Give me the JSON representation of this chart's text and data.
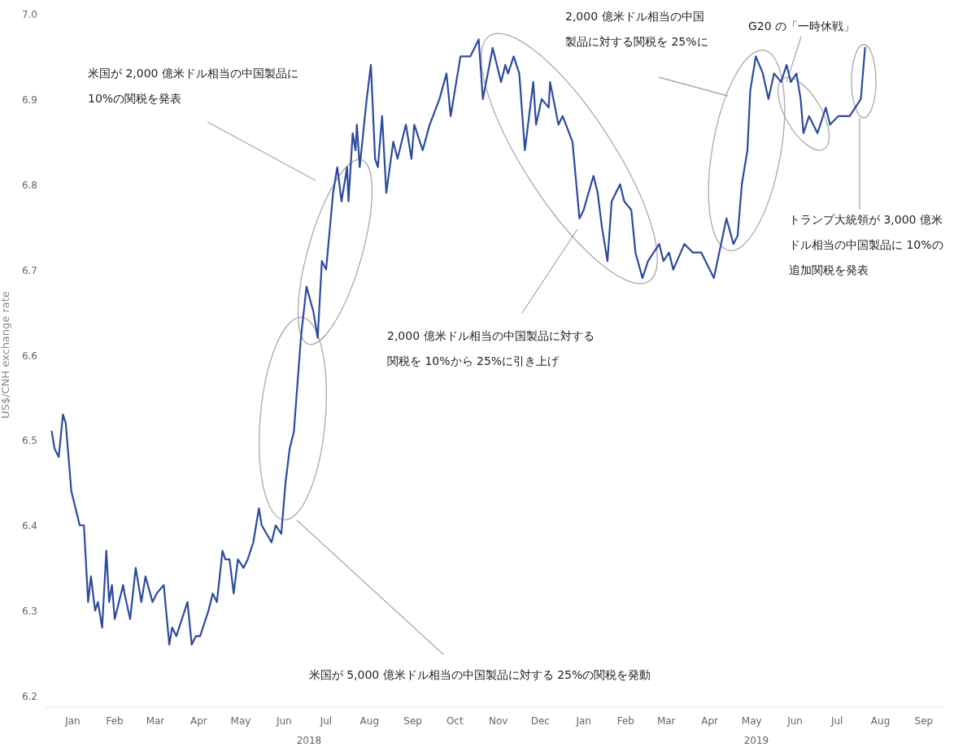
{
  "chart_data": {
    "type": "line",
    "ylabel": "US$/CNH exchange rate",
    "xlim": [
      "2017-12-27",
      "2019-09-30"
    ],
    "xticks": [
      {
        "value": "2018-01-16",
        "label": "Jan"
      },
      {
        "value": "2018-02-15",
        "label": "Feb"
      },
      {
        "value": "2018-03-16",
        "label": "Mar"
      },
      {
        "value": "2018-04-16",
        "label": "Apr"
      },
      {
        "value": "2018-05-16",
        "label": "May"
      },
      {
        "value": "2018-06-16",
        "label": "Jun"
      },
      {
        "value": "2018-07-16",
        "label": "Jul"
      },
      {
        "value": "2018-08-16",
        "label": "Aug"
      },
      {
        "value": "2018-09-16",
        "label": "Sep"
      },
      {
        "value": "2018-10-16",
        "label": "Oct"
      },
      {
        "value": "2018-11-16",
        "label": "Nov"
      },
      {
        "value": "2018-12-16",
        "label": "Dec"
      },
      {
        "value": "2019-01-16",
        "label": "Jan"
      },
      {
        "value": "2019-02-15",
        "label": "Feb"
      },
      {
        "value": "2019-03-16",
        "label": "Mar"
      },
      {
        "value": "2019-04-16",
        "label": "Apr"
      },
      {
        "value": "2019-05-16",
        "label": "May"
      },
      {
        "value": "2019-06-16",
        "label": "Jun"
      },
      {
        "value": "2019-07-16",
        "label": "Jul"
      },
      {
        "value": "2019-08-16",
        "label": "Aug"
      },
      {
        "value": "2019-09-16",
        "label": "Sep"
      }
    ],
    "ylim": [
      6.2,
      7.0
    ],
    "yticks": [
      6.2,
      6.3,
      6.4,
      6.5,
      6.6,
      6.7,
      6.8,
      6.9,
      {
        "value": 7.0,
        "label": "7.0"
      }
    ],
    "x": [
      "2018-01-01",
      "2018-01-03",
      "2018-01-06",
      "2018-01-09",
      "2018-01-11",
      "2018-01-15",
      "2018-01-18",
      "2018-01-21",
      "2018-01-24",
      "2018-01-27",
      "2018-01-29",
      "2018-02-01",
      "2018-02-03",
      "2018-02-06",
      "2018-02-09",
      "2018-02-11",
      "2018-02-13",
      "2018-02-15",
      "2018-02-21",
      "2018-02-22",
      "2018-02-26",
      "2018-03-02",
      "2018-03-06",
      "2018-03-09",
      "2018-03-14",
      "2018-03-17",
      "2018-03-22",
      "2018-03-26",
      "2018-03-28",
      "2018-03-31",
      "2018-04-04",
      "2018-04-08",
      "2018-04-11",
      "2018-04-14",
      "2018-04-17",
      "2018-04-23",
      "2018-04-26",
      "2018-04-29",
      "2018-05-03",
      "2018-05-05",
      "2018-05-08",
      "2018-05-11",
      "2018-05-14",
      "2018-05-18",
      "2018-05-21",
      "2018-05-25",
      "2018-05-29",
      "2018-05-31",
      "2018-06-07",
      "2018-06-10",
      "2018-06-14",
      "2018-06-17",
      "2018-06-20",
      "2018-06-23",
      "2018-06-28",
      "2018-07-02",
      "2018-07-07",
      "2018-07-10",
      "2018-07-13",
      "2018-07-16",
      "2018-07-21",
      "2018-07-24",
      "2018-07-27",
      "2018-07-31",
      "2018-08-01",
      "2018-08-04",
      "2018-08-06",
      "2018-08-07",
      "2018-08-09",
      "2018-08-14",
      "2018-08-17",
      "2018-08-20",
      "2018-08-22",
      "2018-08-25",
      "2018-08-28",
      "2018-09-02",
      "2018-09-05",
      "2018-09-11",
      "2018-09-15",
      "2018-09-17",
      "2018-09-23",
      "2018-09-28",
      "2018-10-05",
      "2018-10-10",
      "2018-10-13",
      "2018-10-20",
      "2018-10-27",
      "2018-11-02",
      "2018-11-05",
      "2018-11-12",
      "2018-11-18",
      "2018-11-21",
      "2018-11-23",
      "2018-11-27",
      "2018-12-01",
      "2018-12-05",
      "2018-12-11",
      "2018-12-13",
      "2018-12-17",
      "2018-12-22",
      "2018-12-23",
      "2018-12-29",
      "2019-01-01",
      "2019-01-08",
      "2019-01-13",
      "2019-01-16",
      "2019-01-23",
      "2019-01-26",
      "2019-01-29",
      "2019-02-02",
      "2019-02-05",
      "2019-02-11",
      "2019-02-14",
      "2019-02-19",
      "2019-02-22",
      "2019-02-27",
      "2019-03-03",
      "2019-03-11",
      "2019-03-14",
      "2019-03-18",
      "2019-03-21",
      "2019-03-29",
      "2019-04-04",
      "2019-04-10",
      "2019-04-19",
      "2019-04-28",
      "2019-05-03",
      "2019-05-06",
      "2019-05-09",
      "2019-05-13",
      "2019-05-15",
      "2019-05-19",
      "2019-05-24",
      "2019-05-28",
      "2019-06-01",
      "2019-06-06",
      "2019-06-10",
      "2019-06-13",
      "2019-06-17",
      "2019-06-20",
      "2019-06-22",
      "2019-06-26",
      "2019-07-02",
      "2019-07-08",
      "2019-07-11",
      "2019-07-17",
      "2019-07-25",
      "2019-07-29",
      "2019-08-02",
      "2019-08-05"
    ],
    "series": [
      {
        "color": "#2e4a9e",
        "values": [
          6.51,
          6.49,
          6.48,
          6.53,
          6.52,
          6.44,
          6.42,
          6.4,
          6.4,
          6.31,
          6.34,
          6.3,
          6.31,
          6.28,
          6.37,
          6.31,
          6.33,
          6.29,
          6.33,
          6.32,
          6.29,
          6.35,
          6.31,
          6.34,
          6.31,
          6.32,
          6.33,
          6.26,
          6.28,
          6.27,
          6.29,
          6.31,
          6.26,
          6.27,
          6.27,
          6.3,
          6.32,
          6.31,
          6.37,
          6.36,
          6.36,
          6.32,
          6.36,
          6.35,
          6.36,
          6.38,
          6.42,
          6.4,
          6.38,
          6.4,
          6.39,
          6.45,
          6.49,
          6.51,
          6.62,
          6.68,
          6.65,
          6.62,
          6.71,
          6.7,
          6.79,
          6.82,
          6.78,
          6.82,
          6.78,
          6.86,
          6.84,
          6.87,
          6.82,
          6.9,
          6.94,
          6.83,
          6.82,
          6.88,
          6.79,
          6.85,
          6.83,
          6.87,
          6.83,
          6.87,
          6.84,
          6.87,
          6.9,
          6.93,
          6.88,
          6.95,
          6.95,
          6.97,
          6.9,
          6.96,
          6.92,
          6.94,
          6.93,
          6.95,
          6.93,
          6.84,
          6.92,
          6.87,
          6.9,
          6.89,
          6.92,
          6.87,
          6.88,
          6.85,
          6.76,
          6.77,
          6.81,
          6.79,
          6.75,
          6.71,
          6.78,
          6.8,
          6.78,
          6.77,
          6.72,
          6.69,
          6.71,
          6.73,
          6.71,
          6.72,
          6.7,
          6.73,
          6.72,
          6.72,
          6.69,
          6.76,
          6.73,
          6.74,
          6.8,
          6.84,
          6.91,
          6.95,
          6.93,
          6.9,
          6.93,
          6.92,
          6.94,
          6.92,
          6.93,
          6.9,
          6.86,
          6.88,
          6.86,
          6.89,
          6.87,
          6.88,
          6.88,
          6.89,
          6.9,
          6.96
        ]
      }
    ],
    "annotations": [
      "米国が 2,000 億米ドル相当の中国製品に10%の関税を発表",
      "米国が 5,000 億米ドル相当の中国製品に対する 25%の関税を発動",
      "2,000 億米ドル相当の中国製品に対する関税を 10%から 25%に引き上げ",
      "2,000 億米ドル相当の中国製品に対する関税を 25%に",
      {
        "text": "G20 の「一時休戦」",
        "x": "2019-06-10",
        "y": 6.92
      },
      "トランプ大統領が 3,000 億米ドル相当の中国製品に 10%の追加関税を発表",
      "2018",
      "2019"
    ]
  }
}
